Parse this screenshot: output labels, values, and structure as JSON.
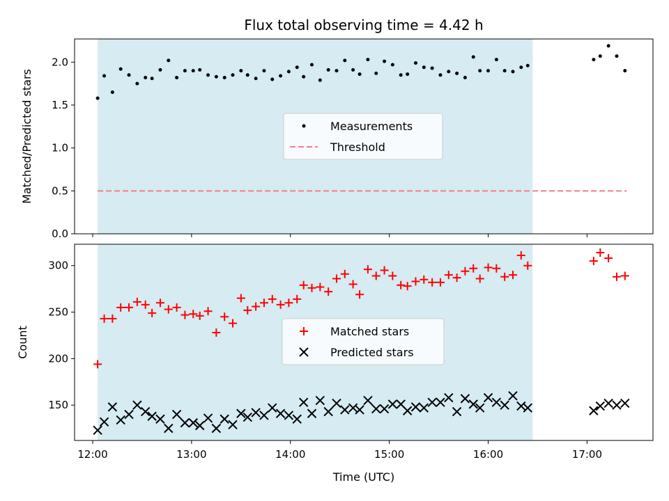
{
  "chart_data": [
    {
      "type": "scatter",
      "title": "Flux total observing time = 4.42 h",
      "ylabel": "Matched/Predicted stars",
      "xlabel": "",
      "xlim": [
        "11:49",
        "17:40"
      ],
      "ylim": [
        0,
        2.27
      ],
      "yticks": [
        0.0,
        0.5,
        1.0,
        1.5,
        2.0
      ],
      "ytick_labels": [
        "0.0",
        "0.5",
        "1.0",
        "1.5",
        "2.0"
      ],
      "shaded_interval": [
        "12:03",
        "16:27"
      ],
      "shade_color": "#add8e6",
      "legend": {
        "location": "center",
        "entries": [
          "Measurements",
          "Threshold"
        ]
      },
      "threshold": {
        "name": "Threshold",
        "value": 0.5,
        "x": [
          "12:03",
          "17:24"
        ],
        "color": "#f08080"
      },
      "series": [
        {
          "name": "Measurements",
          "marker": "dot",
          "color": "#000000",
          "x": [
            "12:03",
            "12:07",
            "12:12",
            "12:17",
            "12:22",
            "12:27",
            "12:32",
            "12:36",
            "12:41",
            "12:46",
            "12:51",
            "12:56",
            "13:01",
            "13:05",
            "13:10",
            "13:15",
            "13:20",
            "13:25",
            "13:30",
            "13:34",
            "13:39",
            "13:44",
            "13:49",
            "13:54",
            "13:59",
            "14:04",
            "14:08",
            "14:13",
            "14:18",
            "14:23",
            "14:28",
            "14:33",
            "14:38",
            "14:42",
            "14:47",
            "14:52",
            "14:57",
            "15:02",
            "15:07",
            "15:11",
            "15:16",
            "15:21",
            "15:26",
            "15:31",
            "15:36",
            "15:41",
            "15:46",
            "15:51",
            "15:55",
            "16:00",
            "16:05",
            "16:10",
            "16:15",
            "16:20",
            "16:24",
            "17:04",
            "17:08",
            "17:13",
            "17:18",
            "17:23"
          ],
          "y": [
            1.58,
            1.84,
            1.65,
            1.92,
            1.85,
            1.75,
            1.82,
            1.81,
            1.91,
            2.02,
            1.82,
            1.9,
            1.9,
            1.91,
            1.85,
            1.83,
            1.82,
            1.85,
            1.9,
            1.85,
            1.81,
            1.9,
            1.8,
            1.84,
            1.89,
            1.94,
            1.83,
            1.97,
            1.79,
            1.91,
            1.9,
            2.02,
            1.91,
            1.86,
            2.03,
            1.87,
            2.01,
            1.97,
            1.85,
            1.86,
            1.99,
            1.94,
            1.93,
            1.85,
            1.89,
            1.87,
            1.82,
            2.06,
            1.9,
            1.9,
            2.03,
            1.9,
            1.89,
            1.94,
            1.96,
            2.03,
            2.07,
            2.19,
            2.07,
            1.9
          ]
        }
      ]
    },
    {
      "type": "scatter",
      "title": "",
      "ylabel": "Count",
      "xlabel": "Time (UTC)",
      "xlim": [
        "11:49",
        "17:40"
      ],
      "ylim": [
        112,
        323
      ],
      "yticks": [
        150,
        200,
        250,
        300
      ],
      "ytick_labels": [
        "150",
        "200",
        "250",
        "300"
      ],
      "xticks": [
        "12:00",
        "13:00",
        "14:00",
        "15:00",
        "16:00",
        "17:00"
      ],
      "xtick_labels": [
        "12:00",
        "13:00",
        "14:00",
        "15:00",
        "16:00",
        "17:00"
      ],
      "shaded_interval": [
        "12:03",
        "16:27"
      ],
      "shade_color": "#add8e6",
      "legend": {
        "location": "center",
        "entries": [
          "Matched stars",
          "Predicted stars"
        ]
      },
      "series": [
        {
          "name": "Matched stars",
          "marker": "plus",
          "color": "#ff0000",
          "x": [
            "12:03",
            "12:07",
            "12:12",
            "12:17",
            "12:22",
            "12:27",
            "12:32",
            "12:36",
            "12:41",
            "12:46",
            "12:51",
            "12:56",
            "13:01",
            "13:05",
            "13:10",
            "13:15",
            "13:20",
            "13:25",
            "13:30",
            "13:34",
            "13:39",
            "13:44",
            "13:49",
            "13:54",
            "13:59",
            "14:04",
            "14:08",
            "14:13",
            "14:18",
            "14:23",
            "14:28",
            "14:33",
            "14:38",
            "14:42",
            "14:47",
            "14:52",
            "14:57",
            "15:02",
            "15:07",
            "15:11",
            "15:16",
            "15:21",
            "15:26",
            "15:31",
            "15:36",
            "15:41",
            "15:46",
            "15:51",
            "15:55",
            "16:00",
            "16:05",
            "16:10",
            "16:15",
            "16:20",
            "16:24",
            "17:04",
            "17:08",
            "17:13",
            "17:18",
            "17:23"
          ],
          "y": [
            194,
            243,
            243,
            255,
            255,
            261,
            258,
            249,
            260,
            253,
            255,
            247,
            248,
            246,
            251,
            228,
            245,
            238,
            265,
            252,
            256,
            260,
            264,
            258,
            260,
            264,
            279,
            276,
            277,
            272,
            286,
            291,
            280,
            269,
            296,
            289,
            295,
            289,
            279,
            278,
            283,
            285,
            282,
            282,
            290,
            287,
            294,
            297,
            286,
            298,
            297,
            288,
            290,
            311,
            300,
            305,
            314,
            308,
            288,
            289
          ]
        },
        {
          "name": "Predicted stars",
          "marker": "x",
          "color": "#000000",
          "x": [
            "12:03",
            "12:07",
            "12:12",
            "12:17",
            "12:22",
            "12:27",
            "12:32",
            "12:36",
            "12:41",
            "12:46",
            "12:51",
            "12:56",
            "13:01",
            "13:05",
            "13:10",
            "13:15",
            "13:20",
            "13:25",
            "13:30",
            "13:34",
            "13:39",
            "13:44",
            "13:49",
            "13:54",
            "13:59",
            "14:04",
            "14:08",
            "14:13",
            "14:18",
            "14:23",
            "14:28",
            "14:33",
            "14:38",
            "14:42",
            "14:47",
            "14:52",
            "14:57",
            "15:02",
            "15:07",
            "15:11",
            "15:16",
            "15:21",
            "15:26",
            "15:31",
            "15:36",
            "15:41",
            "15:46",
            "15:51",
            "15:55",
            "16:00",
            "16:05",
            "16:10",
            "16:15",
            "16:20",
            "16:24",
            "17:04",
            "17:08",
            "17:13",
            "17:18",
            "17:23"
          ],
          "y": [
            123,
            132,
            148,
            134,
            140,
            150,
            143,
            138,
            135,
            125,
            140,
            131,
            131,
            128,
            136,
            125,
            135,
            129,
            141,
            137,
            142,
            139,
            147,
            141,
            139,
            135,
            153,
            141,
            155,
            143,
            152,
            145,
            147,
            145,
            155,
            146,
            146,
            151,
            151,
            144,
            148,
            147,
            153,
            153,
            158,
            143,
            157,
            151,
            147,
            158,
            153,
            150,
            160,
            149,
            147,
            144,
            149,
            152,
            150,
            152
          ]
        }
      ]
    }
  ]
}
